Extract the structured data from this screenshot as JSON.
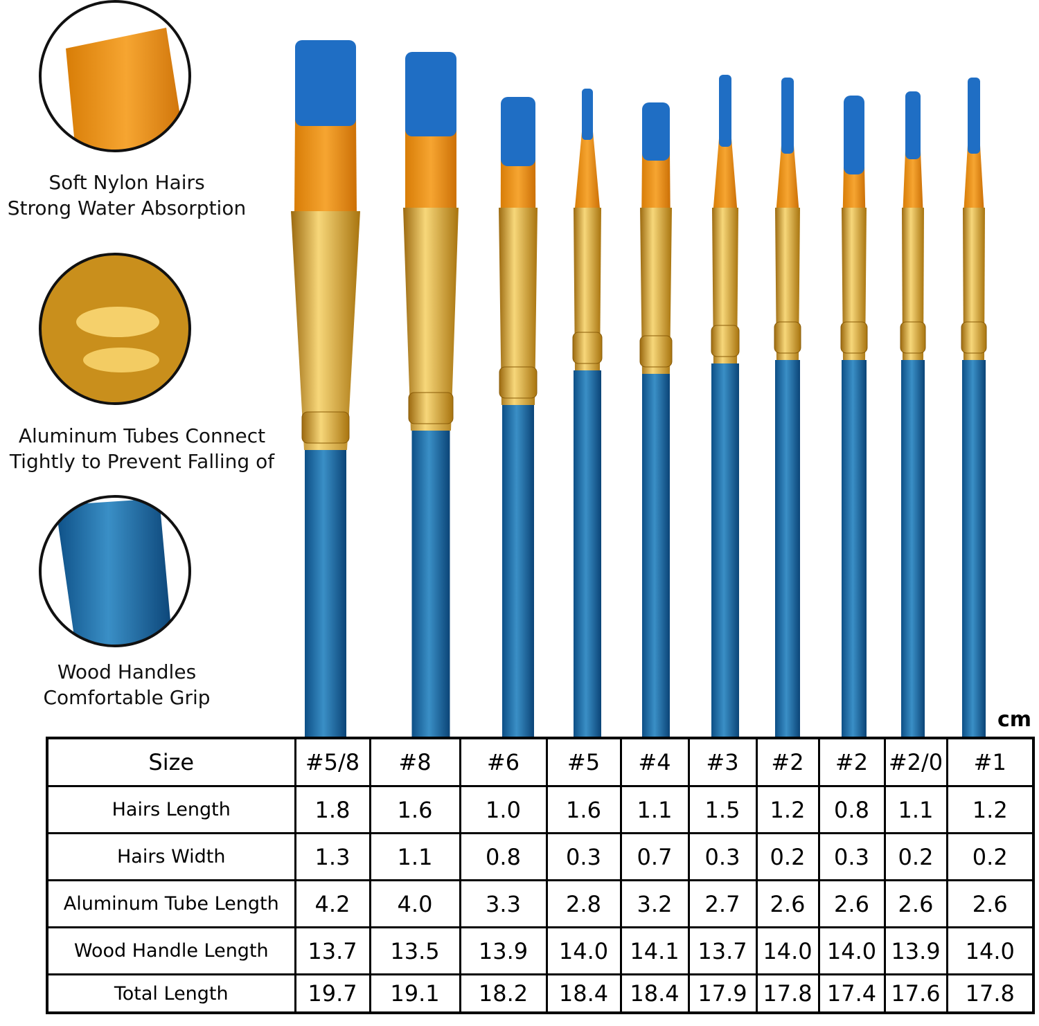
{
  "features": [
    {
      "lines": [
        "Soft Nylon Hairs",
        "Strong Water Absorption"
      ]
    },
    {
      "lines": [
        "Aluminum Tubes Connect",
        "Tightly to Prevent Falling of"
      ]
    },
    {
      "lines": [
        "Wood Handles",
        "Comfortable Grip"
      ]
    }
  ],
  "unit": "cm",
  "table": {
    "header": [
      "Size",
      "#5/8",
      "#8",
      "#6",
      "#5",
      "#4",
      "#3",
      "#2",
      "#2",
      "#2/0",
      "#1"
    ],
    "rows": [
      [
        "Hairs Length",
        "1.8",
        "1.6",
        "1.0",
        "1.6",
        "1.1",
        "1.5",
        "1.2",
        "0.8",
        "1.1",
        "1.2"
      ],
      [
        "Hairs Width",
        "1.3",
        "1.1",
        "0.8",
        "0.3",
        "0.7",
        "0.3",
        "0.2",
        "0.3",
        "0.2",
        "0.2"
      ],
      [
        "Aluminum Tube Length",
        "4.2",
        "4.0",
        "3.3",
        "2.8",
        "3.2",
        "2.7",
        "2.6",
        "2.6",
        "2.6",
        "2.6"
      ],
      [
        "Wood Handle Length",
        "13.7",
        "13.5",
        "13.9",
        "14.0",
        "14.1",
        "13.7",
        "14.0",
        "14.0",
        "13.9",
        "14.0"
      ],
      [
        "Total Length",
        "19.7",
        "19.1",
        "18.2",
        "18.4",
        "18.4",
        "17.9",
        "17.8",
        "17.4",
        "17.6",
        "17.8"
      ]
    ]
  }
}
